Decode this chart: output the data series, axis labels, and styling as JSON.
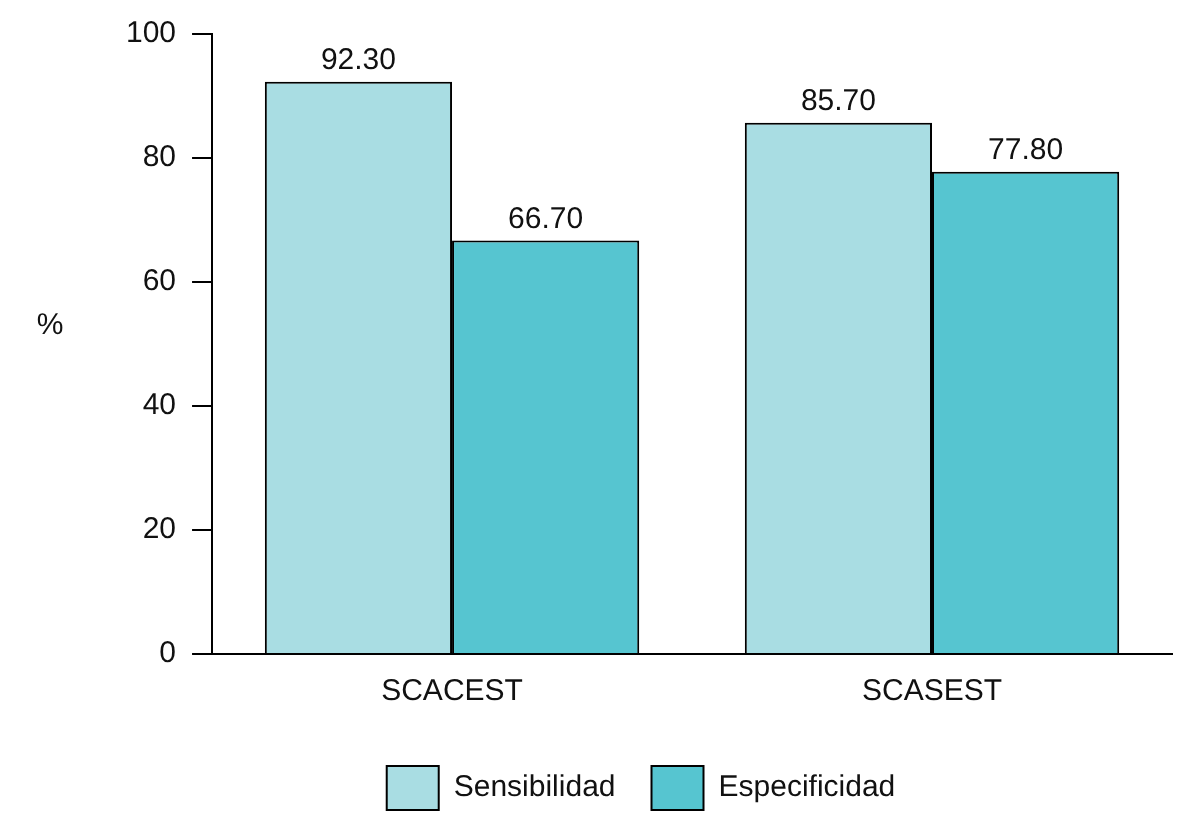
{
  "chart_data": {
    "type": "bar",
    "ylabel": "%",
    "categories": [
      "SCACEST",
      "SCASEST"
    ],
    "series": [
      {
        "name": "Sensibilidad",
        "color": "#a9dde3",
        "values": [
          92.3,
          85.7
        ],
        "value_labels": [
          "92.30",
          "85.70"
        ]
      },
      {
        "name": "Especificidad",
        "color": "#56c5d0",
        "values": [
          66.7,
          77.8
        ],
        "value_labels": [
          "66.70",
          "77.80"
        ]
      }
    ],
    "ylim": [
      0,
      100
    ],
    "yticks": [
      0,
      20,
      40,
      60,
      80,
      100
    ],
    "grid": false,
    "legend": "bottom"
  }
}
